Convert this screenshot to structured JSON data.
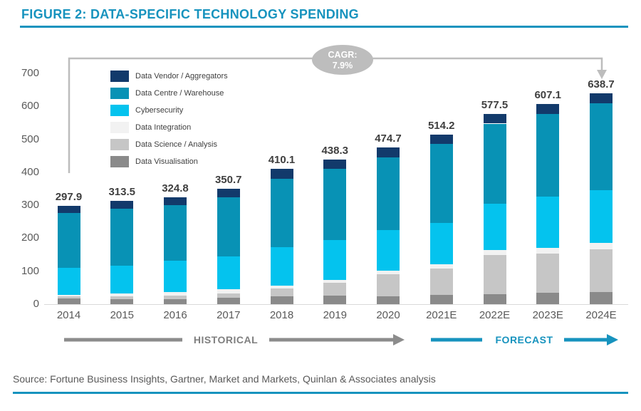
{
  "figure_title": "FIGURE 2: DATA-SPECIFIC TECHNOLOGY SPENDING",
  "source_text": "Source: Fortune Business Insights, Gartner, Market and Markets, Quinlan & Associates analysis",
  "cagr": {
    "label": "CAGR:",
    "value": "7.9%"
  },
  "sections": {
    "historical": "HISTORICAL",
    "forecast": "FORECAST"
  },
  "colors": {
    "brand_teal": "#1793BE",
    "navy": "#123A6B",
    "bar_teal": "#0892B5",
    "cyan": "#04C3EE",
    "integration_grey": "#F2F2F2",
    "science_grey": "#C6C6C6",
    "visualisation_grey": "#8A8A8A",
    "arrow_grey": "#BDBDBD",
    "section_arrow_grey": "#8C8C8C",
    "axis_text_grey": "#595959"
  },
  "chart_data": {
    "type": "bar",
    "stacked": true,
    "title": "FIGURE 2: DATA-SPECIFIC TECHNOLOGY SPENDING",
    "categories": [
      "2014",
      "2015",
      "2016",
      "2017",
      "2018",
      "2019",
      "2020",
      "2021E",
      "2022E",
      "2023E",
      "2024E"
    ],
    "totals": [
      297.9,
      313.5,
      324.8,
      350.7,
      410.1,
      438.3,
      474.7,
      514.2,
      577.5,
      607.1,
      638.7
    ],
    "series": [
      {
        "name": "Data Visualisation",
        "color": "#8A8A8A",
        "values": [
          17,
          16,
          16,
          19,
          23,
          25,
          23,
          27,
          30,
          34,
          37
        ]
      },
      {
        "name": "Data Science / Analysis",
        "color": "#C6C6C6",
        "values": [
          7,
          8,
          9,
          13,
          24,
          40,
          68,
          80,
          118,
          120,
          129
        ]
      },
      {
        "name": "Data Integration",
        "color": "#F2F2F2",
        "values": [
          4.9,
          7.5,
          10.8,
          12.7,
          9.1,
          9.3,
          10.7,
          13.2,
          16.5,
          16.1,
          19.7
        ]
      },
      {
        "name": "Cybersecurity",
        "color": "#04C3EE",
        "values": [
          81,
          86,
          95,
          101,
          117,
          120,
          124,
          126,
          140,
          155,
          160
        ]
      },
      {
        "name": "Data Centre / Warehouse",
        "color": "#0892B5",
        "values": [
          166,
          172,
          170,
          178,
          208,
          215,
          220,
          239,
          243,
          252,
          263
        ]
      },
      {
        "name": "Data Vendor / Aggregators",
        "color": "#123A6B",
        "values": [
          22,
          24,
          24,
          27,
          29,
          29,
          29,
          29,
          30,
          30,
          30
        ]
      }
    ],
    "legend_order": [
      "Data Vendor / Aggregators",
      "Data Centre / Warehouse",
      "Cybersecurity",
      "Data Integration",
      "Data Science / Analysis",
      "Data Visualisation"
    ],
    "y_ticks": [
      0,
      100,
      200,
      300,
      400,
      500,
      600,
      700
    ],
    "ylim": [
      0,
      700
    ],
    "grid": false,
    "legend_position": "top-left-inside",
    "annotations": {
      "cagr": "CAGR: 7.9%",
      "historical_span": "2014-2020",
      "forecast_span": "2021E-2024E"
    }
  }
}
